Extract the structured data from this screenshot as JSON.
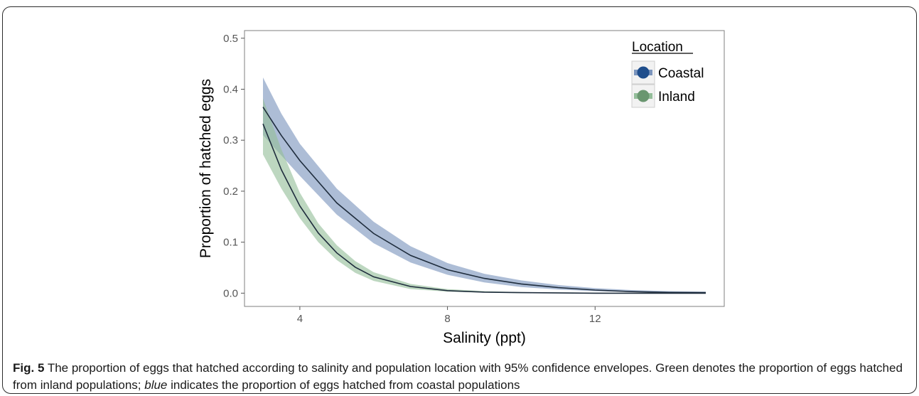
{
  "chart_data": {
    "type": "line",
    "xlabel": "Salinity (ppt)",
    "ylabel": "Proportion of hatched eggs",
    "xlim": [
      2.5,
      15.5
    ],
    "ylim": [
      -0.026,
      0.515
    ],
    "xticks": [
      4,
      8,
      12
    ],
    "yticks": [
      0.0,
      0.1,
      0.2,
      0.3,
      0.4,
      0.5
    ],
    "x_tick_labels": [
      "4",
      "8",
      "12"
    ],
    "y_tick_labels": [
      "0.0",
      "0.1",
      "0.2",
      "0.3",
      "0.4",
      "0.5"
    ],
    "grid": false,
    "legend": {
      "title": "Location",
      "position": "top-right"
    },
    "series": [
      {
        "name": "Coastal",
        "color": "#4a6fa5",
        "fill_color": "#7b95bd",
        "x": [
          3.0,
          3.5,
          4.0,
          5.0,
          6.0,
          7.0,
          8.0,
          9.0,
          10.0,
          11.0,
          12.0,
          13.0,
          14.0,
          15.0
        ],
        "y": [
          0.365,
          0.309,
          0.26,
          0.177,
          0.117,
          0.074,
          0.046,
          0.029,
          0.018,
          0.011,
          0.006,
          0.003,
          0.0015,
          0.001
        ],
        "lower": [
          0.31,
          0.27,
          0.23,
          0.154,
          0.098,
          0.06,
          0.036,
          0.021,
          0.012,
          0.007,
          0.004,
          0.002,
          0.001,
          0.0
        ],
        "upper": [
          0.423,
          0.352,
          0.293,
          0.205,
          0.14,
          0.092,
          0.059,
          0.038,
          0.025,
          0.016,
          0.01,
          0.006,
          0.004,
          0.003
        ]
      },
      {
        "name": "Inland",
        "color": "#6a9a70",
        "fill_color": "#94be9a",
        "x": [
          3.0,
          3.5,
          4.0,
          4.5,
          5.0,
          5.5,
          6.0,
          7.0,
          8.0,
          9.0,
          10.0,
          12.0,
          15.0
        ],
        "y": [
          0.332,
          0.242,
          0.171,
          0.118,
          0.079,
          0.051,
          0.032,
          0.013,
          0.005,
          0.002,
          0.001,
          0.0,
          0.0
        ],
        "lower": [
          0.272,
          0.205,
          0.147,
          0.1,
          0.065,
          0.04,
          0.024,
          0.008,
          0.003,
          0.001,
          0.0,
          0.0,
          0.0
        ],
        "upper": [
          0.382,
          0.282,
          0.197,
          0.137,
          0.094,
          0.063,
          0.041,
          0.018,
          0.008,
          0.004,
          0.002,
          0.001,
          0.0
        ]
      }
    ]
  },
  "caption": {
    "label": "Fig. 5",
    "part1": " The proportion of eggs that hatched according to salinity and population location with 95% confidence envelopes. Green denotes the proportion of eggs hatched from inland populations; ",
    "italic": "blue",
    "part2": " indicates the proportion of eggs hatched from coastal populations"
  }
}
